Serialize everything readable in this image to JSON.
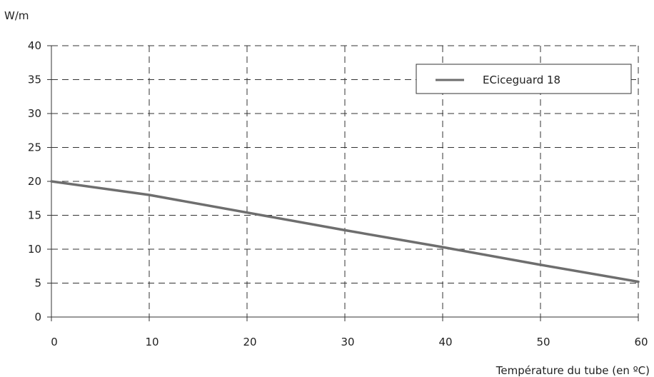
{
  "chart_data": {
    "type": "line",
    "ylabel": "W/m",
    "xlabel": "Température du tube (en ºC)",
    "xlim": [
      0,
      60
    ],
    "ylim": [
      0,
      40
    ],
    "x_ticks": [
      0,
      10,
      20,
      30,
      40,
      50,
      60
    ],
    "y_ticks": [
      0,
      5,
      10,
      15,
      20,
      25,
      30,
      35,
      40
    ],
    "grid": true,
    "grid_style": "dashed",
    "legend_position": "top-right",
    "series": [
      {
        "name": "ECiceguard 18",
        "color": "#6e6e6e",
        "x": [
          0,
          10,
          20,
          30,
          40,
          50,
          60
        ],
        "y": [
          20,
          18,
          15.4,
          12.8,
          10.3,
          7.7,
          5.2
        ]
      }
    ]
  }
}
